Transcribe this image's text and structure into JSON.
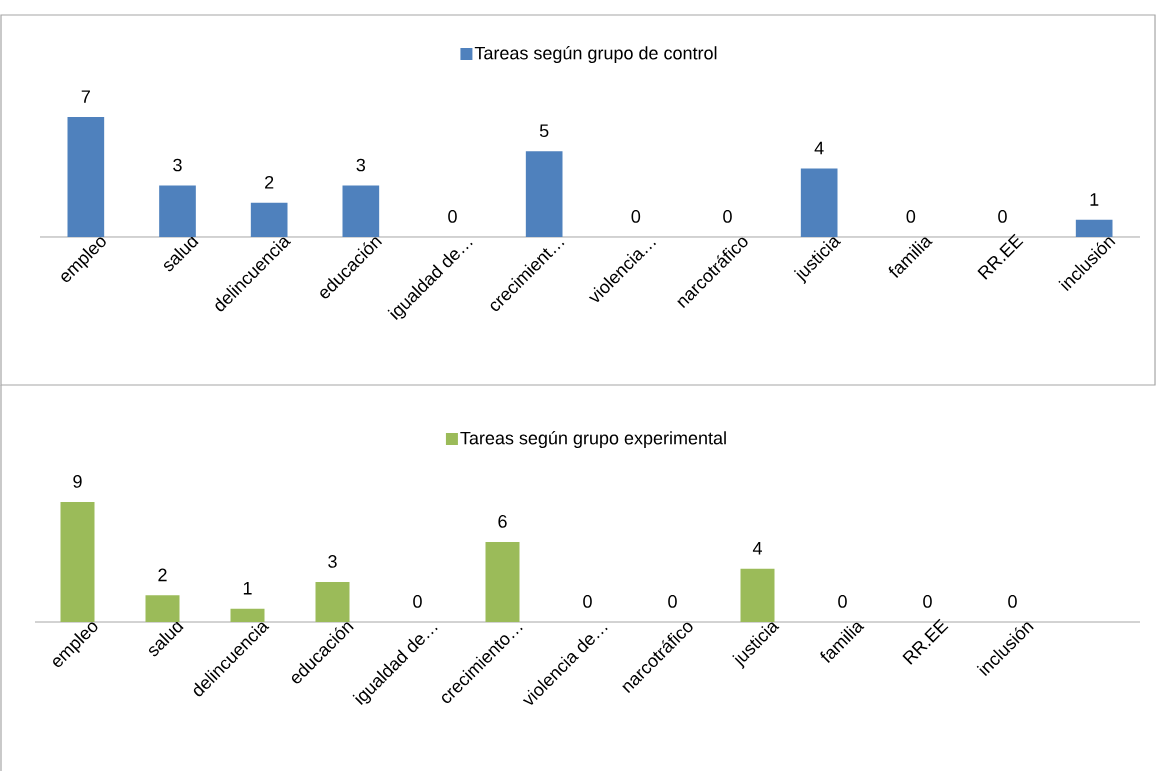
{
  "chart_data": [
    {
      "type": "bar",
      "categories": [
        "empleo",
        "salud",
        "delincuencia",
        "educación",
        "igualdad de…",
        "crecimient…",
        "violencia…",
        "narcotráfico",
        "justicia",
        "familia",
        "RR.EE",
        "inclusión"
      ],
      "series": [
        {
          "name": "Tareas según grupo de control",
          "color": "#4f81bd",
          "values": [
            7,
            3,
            2,
            3,
            0,
            5,
            0,
            0,
            4,
            0,
            0,
            1
          ]
        }
      ],
      "legend": "top",
      "data_labels": true
    },
    {
      "type": "bar",
      "categories": [
        "empleo",
        "salud",
        "delincuencia",
        "educación",
        "igualdad de…",
        "crecimiento…",
        "violencia de…",
        "narcotráfico",
        "justicia",
        "familia",
        "RR.EE",
        "inclusión",
        null
      ],
      "series": [
        {
          "name": "Tareas según grupo experimental",
          "color": "#9bbb59",
          "values": [
            9,
            2,
            1,
            3,
            0,
            6,
            0,
            0,
            4,
            0,
            0,
            0,
            null
          ]
        }
      ],
      "legend": "top",
      "data_labels": true
    }
  ]
}
